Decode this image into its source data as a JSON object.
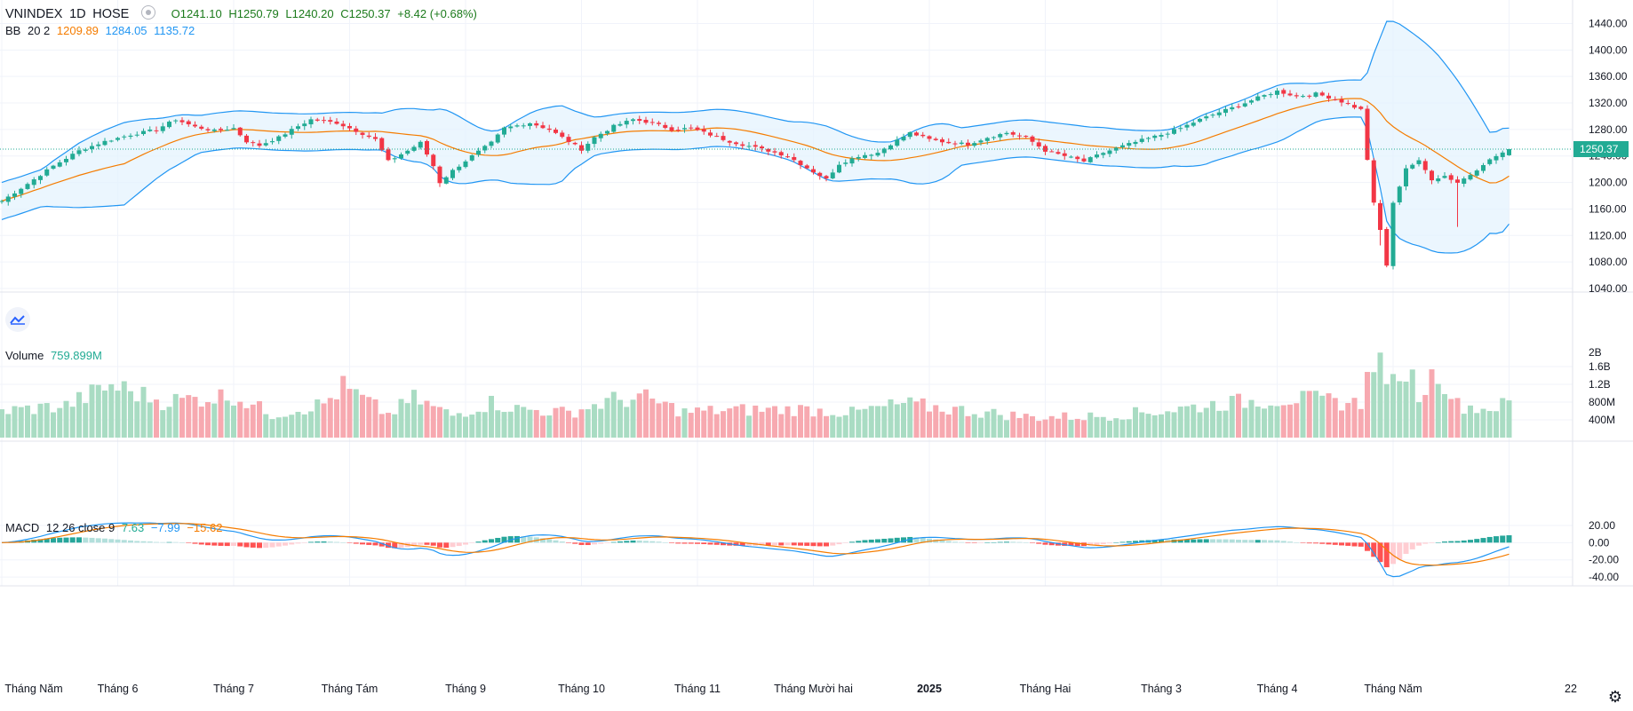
{
  "main_legend": {
    "symbol": "VNINDEX",
    "interval": "1D",
    "exchange": "HOSE",
    "open": "O1241.10",
    "high": "H1250.79",
    "low": "L1240.20",
    "close": "C1250.37",
    "change": "+8.42 (+0.68%)"
  },
  "bb_legend": {
    "name": "BB",
    "params": "20 2",
    "basis": "1209.89",
    "upper": "1284.05",
    "lower": "1135.72"
  },
  "volume_legend": {
    "name": "Volume",
    "value": "759.899M"
  },
  "macd_legend": {
    "name": "MACD",
    "params": "12 26 close 9",
    "hist": "7.63",
    "macd": "−7.99",
    "signal": "−15.62"
  },
  "last_price_label": "1250.37",
  "colors": {
    "up": "#22ab94",
    "down": "#f23645",
    "vol_up": "#a9dcc3",
    "vol_down": "#f7a9b0",
    "bb_line": "#2196f3",
    "bb_fill": "#e3f2fd",
    "basis": "#f57c00",
    "macd": "#2196f3",
    "signal": "#f57c00"
  },
  "chart_data": [
    {
      "type": "candlestick",
      "title": "VNINDEX 1D HOSE",
      "y_ticks": [
        "1040.00",
        "1080.00",
        "1120.00",
        "1160.00",
        "1200.00",
        "1240.00",
        "1280.00",
        "1320.00",
        "1360.00",
        "1400.00",
        "1440.00"
      ],
      "ylim": [
        1040,
        1446
      ],
      "x_labels": [
        "Tháng Năm",
        "Tháng 6",
        "Tháng 7",
        "Tháng Tám",
        "Tháng 9",
        "Tháng 10",
        "Tháng 11",
        "Tháng Mười hai",
        "2025",
        "Tháng Hai",
        "Tháng 3",
        "Tháng 4",
        "Tháng Năm",
        "22"
      ],
      "close_anchors": [
        [
          0,
          1172
        ],
        [
          4,
          1198
        ],
        [
          8,
          1225
        ],
        [
          12,
          1248
        ],
        [
          16,
          1262
        ],
        [
          20,
          1272
        ],
        [
          24,
          1280
        ],
        [
          27,
          1295
        ],
        [
          30,
          1284
        ],
        [
          33,
          1278
        ],
        [
          36,
          1282
        ],
        [
          38,
          1262
        ],
        [
          40,
          1256
        ],
        [
          43,
          1268
        ],
        [
          46,
          1285
        ],
        [
          48,
          1295
        ],
        [
          52,
          1290
        ],
        [
          55,
          1278
        ],
        [
          58,
          1265
        ],
        [
          60,
          1232
        ],
        [
          63,
          1248
        ],
        [
          65,
          1260
        ],
        [
          67,
          1225
        ],
        [
          68,
          1200
        ],
        [
          70,
          1218
        ],
        [
          73,
          1240
        ],
        [
          76,
          1260
        ],
        [
          78,
          1282
        ],
        [
          82,
          1290
        ],
        [
          85,
          1280
        ],
        [
          88,
          1262
        ],
        [
          90,
          1250
        ],
        [
          92,
          1268
        ],
        [
          95,
          1285
        ],
        [
          98,
          1295
        ],
        [
          101,
          1290
        ],
        [
          104,
          1280
        ],
        [
          107,
          1282
        ],
        [
          110,
          1272
        ],
        [
          113,
          1262
        ],
        [
          116,
          1255
        ],
        [
          119,
          1248
        ],
        [
          122,
          1240
        ],
        [
          125,
          1222
        ],
        [
          128,
          1205
        ],
        [
          130,
          1228
        ],
        [
          133,
          1240
        ],
        [
          136,
          1245
        ],
        [
          138,
          1258
        ],
        [
          141,
          1275
        ],
        [
          144,
          1265
        ],
        [
          147,
          1260
        ],
        [
          150,
          1258
        ],
        [
          153,
          1268
        ],
        [
          156,
          1275
        ],
        [
          159,
          1268
        ],
        [
          162,
          1248
        ],
        [
          165,
          1240
        ],
        [
          168,
          1232
        ],
        [
          171,
          1245
        ],
        [
          174,
          1255
        ],
        [
          177,
          1264
        ],
        [
          180,
          1272
        ],
        [
          183,
          1282
        ],
        [
          186,
          1295
        ],
        [
          189,
          1306
        ],
        [
          192,
          1316
        ],
        [
          195,
          1328
        ],
        [
          198,
          1338
        ],
        [
          201,
          1330
        ],
        [
          204,
          1334
        ],
        [
          207,
          1326
        ],
        [
          209,
          1318
        ],
        [
          211,
          1310
        ],
        [
          212,
          1235
        ],
        [
          213,
          1168
        ],
        [
          214,
          1128
        ],
        [
          215,
          1075
        ],
        [
          216,
          1168
        ],
        [
          217,
          1195
        ],
        [
          218,
          1222
        ],
        [
          220,
          1232
        ],
        [
          222,
          1205
        ],
        [
          224,
          1210
        ],
        [
          226,
          1200
        ],
        [
          228,
          1212
        ],
        [
          230,
          1228
        ],
        [
          232,
          1240
        ],
        [
          234,
          1250
        ]
      ],
      "bb": {
        "length": 20,
        "mult": 2
      }
    },
    {
      "type": "bar",
      "title": "Volume",
      "y_ticks": [
        "400M",
        "800M",
        "1.2B",
        "1.6B",
        "2B"
      ],
      "ylim": [
        0,
        2000
      ],
      "unit": "M",
      "volume_anchors": [
        [
          0,
          600
        ],
        [
          10,
          720
        ],
        [
          17,
          1180
        ],
        [
          25,
          820
        ],
        [
          36,
          950
        ],
        [
          42,
          520
        ],
        [
          50,
          760
        ],
        [
          53,
          1140
        ],
        [
          60,
          520
        ],
        [
          64,
          880
        ],
        [
          70,
          500
        ],
        [
          76,
          790
        ],
        [
          80,
          650
        ],
        [
          88,
          560
        ],
        [
          95,
          850
        ],
        [
          100,
          880
        ],
        [
          106,
          580
        ],
        [
          114,
          620
        ],
        [
          124,
          640
        ],
        [
          132,
          560
        ],
        [
          140,
          760
        ],
        [
          150,
          600
        ],
        [
          160,
          460
        ],
        [
          170,
          480
        ],
        [
          180,
          600
        ],
        [
          190,
          780
        ],
        [
          200,
          880
        ],
        [
          205,
          840
        ],
        [
          211,
          760
        ],
        [
          212,
          1880
        ],
        [
          213,
          1300
        ],
        [
          214,
          1770
        ],
        [
          215,
          1500
        ],
        [
          216,
          1160
        ],
        [
          217,
          1080
        ],
        [
          218,
          1680
        ],
        [
          220,
          950
        ],
        [
          223,
          1550
        ],
        [
          226,
          740
        ],
        [
          230,
          650
        ],
        [
          234,
          760
        ]
      ],
      "volume_up": [
        12,
        18,
        22,
        43,
        48,
        49,
        55,
        70,
        78,
        85,
        97,
        98,
        130,
        132,
        137,
        141,
        155,
        156,
        176,
        177,
        178,
        188,
        196,
        197,
        204,
        205,
        213,
        214,
        215,
        216,
        217,
        218,
        233,
        234
      ]
    },
    {
      "type": "line",
      "title": "MACD",
      "y_ticks": [
        "-40.00",
        "-20.00",
        "0.00",
        "20.00"
      ],
      "ylim": [
        -42,
        22
      ],
      "params": {
        "fast": 12,
        "slow": 26,
        "signal": 9,
        "source": "close"
      },
      "last_values": {
        "histogram": 7.63,
        "macd": -7.99,
        "signal": -15.62
      }
    }
  ]
}
